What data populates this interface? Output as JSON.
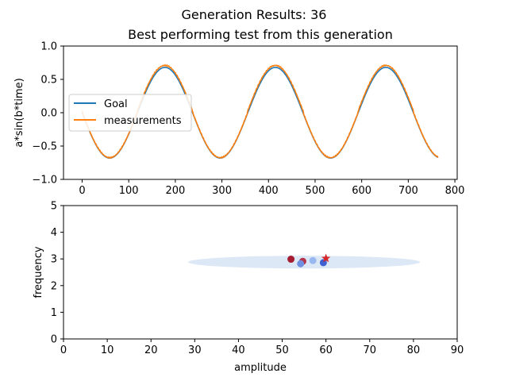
{
  "figure": {
    "suptitle": "Generation Results: 36"
  },
  "chart_data": [
    {
      "type": "line",
      "title": "Best performing test from this generation",
      "xlabel": "",
      "ylabel": "a*sin(b*time)",
      "xlim": [
        -40,
        805
      ],
      "ylim": [
        -1.0,
        1.0
      ],
      "xticks": [
        0,
        100,
        200,
        300,
        400,
        500,
        600,
        700,
        800
      ],
      "yticks": [
        -1.0,
        -0.5,
        0.0,
        0.5,
        1.0
      ],
      "xtick_labels": [
        "0",
        "100",
        "200",
        "300",
        "400",
        "500",
        "600",
        "700",
        "800"
      ],
      "ytick_labels": [
        "−1.0",
        "−0.5",
        "0.0",
        "0.5",
        "1.0"
      ],
      "grid": false,
      "legend_position": "center-left",
      "series": [
        {
          "name": "Goal",
          "color": "#1f77b4",
          "function": "sine",
          "amplitude": 0.68,
          "period": 237,
          "phase_shift_deg": 180,
          "x_start": 0,
          "x_end": 764
        },
        {
          "name": "measurements",
          "color": "#ff7f0e",
          "function": "sine",
          "amplitude": 0.68,
          "period": 237,
          "phase_shift_deg": 180,
          "x_start": 0,
          "x_end": 764,
          "offset": 0.03
        }
      ]
    },
    {
      "type": "scatter",
      "title": "",
      "xlabel": "amplitude",
      "ylabel": "frequency",
      "xlim": [
        0,
        90
      ],
      "ylim": [
        0,
        5
      ],
      "xticks": [
        0,
        10,
        20,
        30,
        40,
        50,
        60,
        70,
        80,
        90
      ],
      "yticks": [
        0,
        1,
        2,
        3,
        4,
        5
      ],
      "grid": false,
      "ellipse": {
        "cx": 55,
        "cy": 2.88,
        "rx": 26.5,
        "ry": 0.24,
        "color": "#dce8f5"
      },
      "points": [
        {
          "x": 52.0,
          "y": 2.99,
          "color": "#a51c30"
        },
        {
          "x": 54.7,
          "y": 2.91,
          "color": "#b4344c"
        },
        {
          "x": 54.2,
          "y": 2.82,
          "color": "#6f8fe0"
        },
        {
          "x": 57.0,
          "y": 2.94,
          "color": "#9ab8f0"
        },
        {
          "x": 59.4,
          "y": 2.86,
          "color": "#3f60d0"
        }
      ],
      "target": {
        "x": 60.0,
        "y": 3.02,
        "color": "#d62728",
        "marker": "star"
      }
    }
  ]
}
